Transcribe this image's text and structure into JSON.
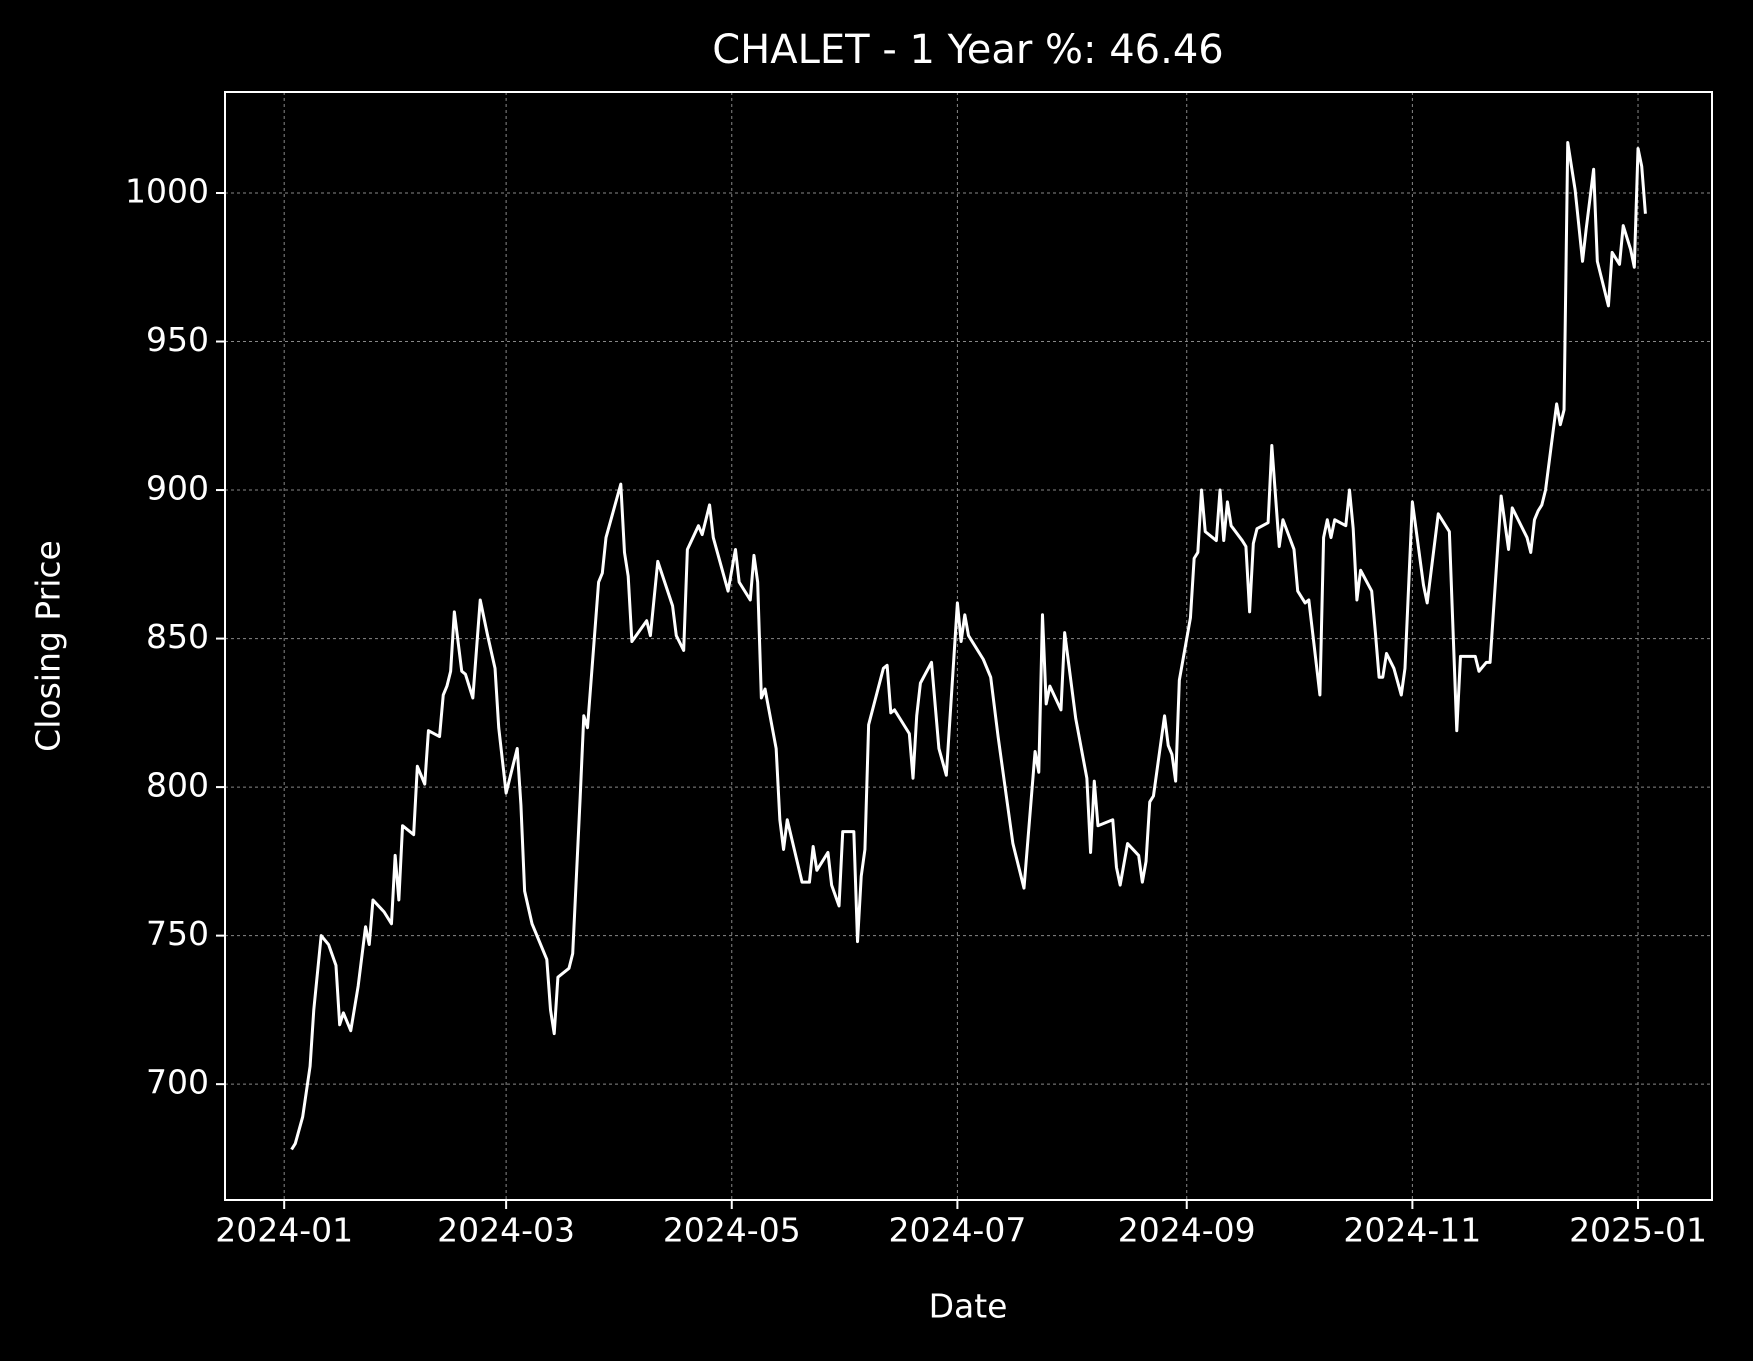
{
  "chart_data": {
    "type": "line",
    "title": "CHALET - 1 Year %: 46.46",
    "x_label": "Date",
    "y_label": "Closing Price",
    "xlim": [
      -16,
      386
    ],
    "ylim": [
      661,
      1034
    ],
    "xticks": [
      {
        "value": 0,
        "label": "2024-01"
      },
      {
        "value": 60,
        "label": "2024-03"
      },
      {
        "value": 121,
        "label": "2024-05"
      },
      {
        "value": 182,
        "label": "2024-07"
      },
      {
        "value": 244,
        "label": "2024-09"
      },
      {
        "value": 305,
        "label": "2024-11"
      },
      {
        "value": 366,
        "label": "2025-01"
      }
    ],
    "yticks": [
      700,
      750,
      800,
      850,
      900,
      950,
      1000
    ],
    "grid": true,
    "series": [
      {
        "color": "#ffffff",
        "x": [
          2,
          3,
          5,
          7,
          8,
          10,
          12,
          14,
          15,
          16,
          18,
          20,
          22,
          23,
          24,
          27,
          29,
          30,
          31,
          32,
          35,
          36,
          38,
          39,
          42,
          43,
          44,
          45,
          46,
          48,
          49,
          51,
          53,
          55,
          57,
          58,
          60,
          63,
          64,
          65,
          67,
          71,
          72,
          73,
          74,
          77,
          78,
          80,
          81,
          82,
          85,
          86,
          87,
          91,
          92,
          93,
          94,
          98,
          99,
          101,
          105,
          106,
          108,
          109,
          112,
          113,
          115,
          116,
          120,
          122,
          123,
          126,
          127,
          128,
          129,
          130,
          133,
          134,
          135,
          136,
          140,
          142,
          143,
          144,
          147,
          148,
          150,
          151,
          154,
          155,
          156,
          157,
          158,
          162,
          163,
          164,
          165,
          169,
          170,
          171,
          172,
          175,
          177,
          179,
          182,
          183,
          184,
          185,
          189,
          191,
          193,
          197,
          200,
          203,
          204,
          205,
          206,
          207,
          210,
          211,
          214,
          217,
          218,
          219,
          220,
          224,
          225,
          226,
          228,
          231,
          232,
          233,
          234,
          235,
          238,
          239,
          240,
          241,
          242,
          245,
          246,
          247,
          248,
          249,
          252,
          253,
          254,
          255,
          256,
          259,
          260,
          261,
          262,
          263,
          266,
          267,
          269,
          270,
          273,
          274,
          276,
          277,
          280,
          281,
          282,
          283,
          284,
          287,
          288,
          289,
          290,
          291,
          294,
          295,
          296,
          297,
          298,
          300,
          302,
          303,
          305,
          308,
          309,
          312,
          315,
          317,
          318,
          322,
          323,
          325,
          326,
          329,
          331,
          332,
          336,
          337,
          338,
          339,
          340,
          341,
          344,
          345,
          346,
          347,
          349,
          351,
          352,
          354,
          355,
          358,
          359,
          361,
          362,
          364,
          365,
          366,
          367,
          368
        ],
        "values": [
          678,
          680,
          689,
          706,
          725,
          750,
          747,
          740,
          720,
          724,
          718,
          733,
          753,
          747,
          762,
          758,
          754,
          777,
          762,
          787,
          784,
          807,
          801,
          819,
          817,
          831,
          834,
          839,
          859,
          839,
          838,
          830,
          863,
          851,
          840,
          820,
          798,
          813,
          794,
          765,
          754,
          742,
          725,
          717,
          736,
          739,
          744,
          796,
          824,
          820,
          869,
          872,
          884,
          902,
          879,
          871,
          849,
          856,
          851,
          876,
          861,
          851,
          846,
          880,
          888,
          885,
          895,
          884,
          866,
          880,
          869,
          863,
          878,
          869,
          830,
          833,
          813,
          789,
          779,
          789,
          768,
          768,
          780,
          772,
          778,
          767,
          760,
          785,
          785,
          748,
          770,
          779,
          821,
          840,
          841,
          825,
          826,
          818,
          803,
          824,
          835,
          842,
          813,
          804,
          862,
          849,
          858,
          851,
          843,
          837,
          817,
          781,
          766,
          812,
          805,
          858,
          828,
          834,
          826,
          852,
          823,
          803,
          778,
          802,
          787,
          789,
          773,
          767,
          781,
          777,
          768,
          775,
          795,
          797,
          824,
          814,
          811,
          802,
          836,
          857,
          877,
          879,
          900,
          886,
          883,
          900,
          883,
          896,
          888,
          883,
          881,
          859,
          882,
          887,
          889,
          915,
          881,
          890,
          880,
          866,
          862,
          863,
          831,
          884,
          890,
          884,
          890,
          888,
          900,
          887,
          863,
          873,
          866,
          852,
          837,
          837,
          845,
          840,
          831,
          840,
          896,
          868,
          862,
          892,
          886,
          819,
          844,
          844,
          839,
          842,
          842,
          898,
          880,
          894,
          884,
          879,
          890,
          893,
          895,
          900,
          929,
          922,
          927,
          1017,
          1001,
          977,
          988,
          1008,
          977,
          962,
          980,
          976,
          989,
          981,
          975,
          1015,
          1009,
          993
        ]
      }
    ]
  }
}
